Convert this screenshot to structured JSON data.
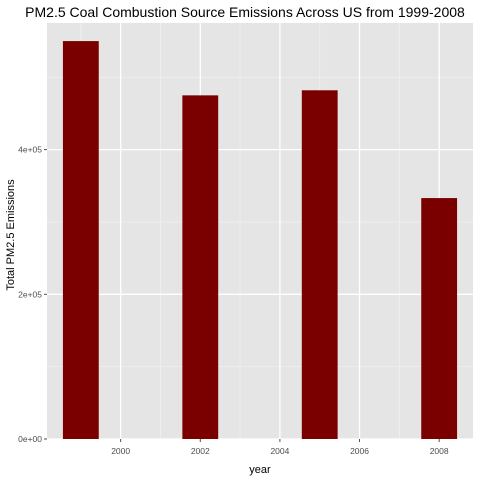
{
  "chart_data": {
    "type": "bar",
    "title": "PM2.5 Coal Combustion Source Emissions Across US from 1999-2008",
    "xlabel": "year",
    "ylabel": "Total PM2.5 Emissions",
    "x": [
      1999,
      2002,
      2005,
      2008
    ],
    "values": [
      550000,
      475000,
      482000,
      333000
    ],
    "xlim": [
      1998.15,
      2008.85
    ],
    "ylim": [
      0,
      575000
    ],
    "x_ticks": [
      2000,
      2002,
      2004,
      2006,
      2008
    ],
    "x_tick_labels": [
      "2000",
      "2002",
      "2004",
      "2006",
      "2008"
    ],
    "y_ticks": [
      0,
      200000,
      400000
    ],
    "y_tick_labels": [
      "0e+00",
      "2e+05",
      "4e+05"
    ],
    "grid": true,
    "colors": {
      "bar": "#7a0000",
      "panel_background": "#e5e5e5",
      "grid_major": "#ffffff",
      "grid_minor": "#f0f0f0",
      "tick_text": "#4d4d4d",
      "text": "#000000"
    }
  }
}
